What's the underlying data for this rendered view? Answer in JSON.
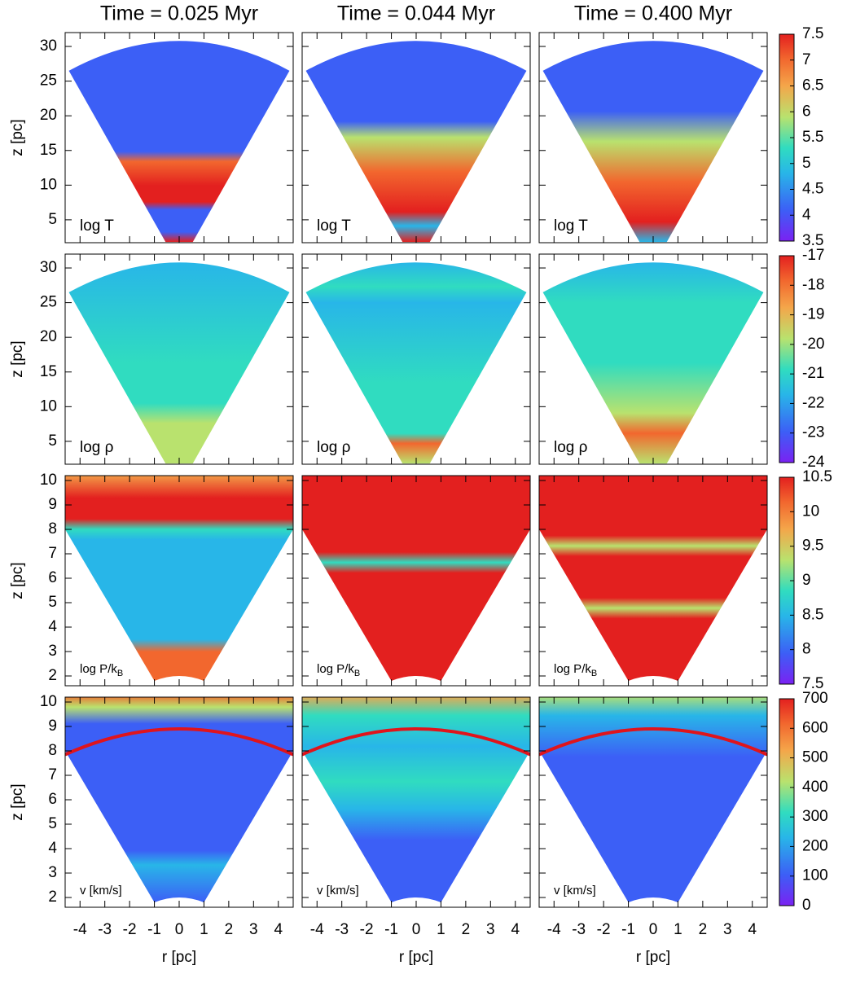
{
  "chart_data": {
    "type": "heatmap",
    "column_titles": [
      "Time = 0.025 Myr",
      "Time = 0.044 Myr",
      "Time = 0.400 Myr"
    ],
    "xlabel": "r [pc]",
    "ylabel": "z [pc]",
    "xlim": [
      -4.6,
      4.6
    ],
    "xticks": [
      -4,
      -3,
      -2,
      -1,
      0,
      1,
      2,
      3,
      4
    ],
    "rows": [
      {
        "field_label": "log T",
        "ylim": [
          1.7,
          32
        ],
        "yticks": [
          5,
          10,
          15,
          20,
          25,
          30
        ],
        "colorbar_lim": [
          3.5,
          7.5
        ],
        "colorbar_ticks": [
          3.5,
          4,
          4.5,
          5,
          5.5,
          6,
          6.5,
          7,
          7.5
        ]
      },
      {
        "field_label": "log ρ",
        "ylim": [
          1.7,
          32
        ],
        "yticks": [
          5,
          10,
          15,
          20,
          25,
          30
        ],
        "colorbar_lim": [
          -24,
          -17
        ],
        "colorbar_ticks": [
          -24,
          -23,
          -22,
          -21,
          -20,
          -19,
          -18,
          -17
        ]
      },
      {
        "field_label": "log P/k",
        "field_label_sub": "B",
        "ylim": [
          1.6,
          10.2
        ],
        "yticks": [
          2,
          3,
          4,
          5,
          6,
          7,
          8,
          9,
          10
        ],
        "colorbar_lim": [
          7.5,
          10.5
        ],
        "colorbar_ticks": [
          7.5,
          8,
          8.5,
          9,
          9.5,
          10,
          10.5
        ]
      },
      {
        "field_label": "v [km/s]",
        "ylim": [
          1.6,
          10.2
        ],
        "yticks": [
          2,
          3,
          4,
          5,
          6,
          7,
          8,
          9,
          10
        ],
        "colorbar_lim": [
          0,
          700
        ],
        "colorbar_ticks": [
          0,
          100,
          200,
          300,
          400,
          500,
          600,
          700
        ]
      }
    ]
  }
}
